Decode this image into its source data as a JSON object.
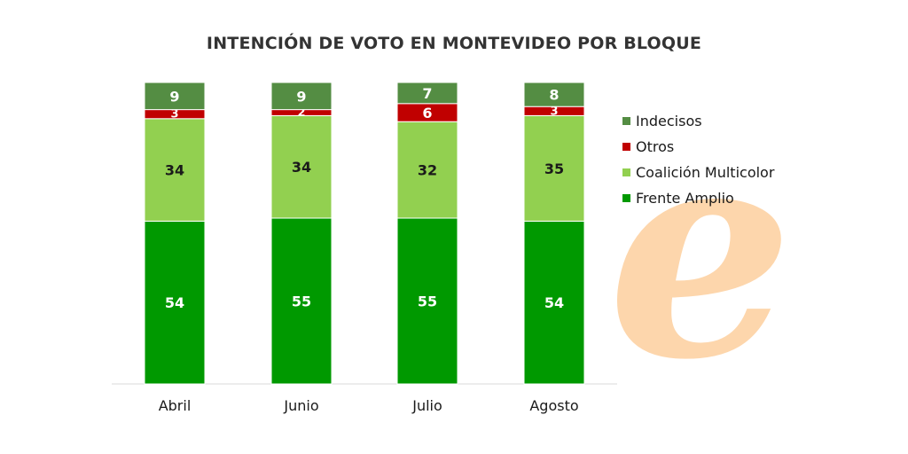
{
  "chart_data": {
    "type": "bar",
    "stacked": true,
    "title": "INTENCIÓN DE VOTO EN MONTEVIDEO POR BLOQUE",
    "categories": [
      "Abril",
      "Junio",
      "Julio",
      "Agosto"
    ],
    "series": [
      {
        "name": "Frente Amplio",
        "values": [
          54,
          55,
          55,
          54
        ],
        "color": "#009900",
        "label_color": "#ffffff"
      },
      {
        "name": "Coalición Multicolor",
        "values": [
          34,
          34,
          32,
          35
        ],
        "color": "#92d050",
        "label_color": "#1a1a1a"
      },
      {
        "name": "Otros",
        "values": [
          3,
          2,
          6,
          3
        ],
        "color": "#c00000",
        "label_color": "#ffffff"
      },
      {
        "name": "Indecisos",
        "values": [
          9,
          9,
          7,
          8
        ],
        "color": "#548d43",
        "label_color": "#ffffff"
      }
    ],
    "legend_order": [
      "Indecisos",
      "Otros",
      "Coalición Multicolor",
      "Frente Amplio"
    ],
    "legend_position": "right",
    "ylim": [
      0,
      100
    ],
    "grid": false
  },
  "logo": {
    "glyph": "e",
    "color": "#fdd6ac"
  }
}
